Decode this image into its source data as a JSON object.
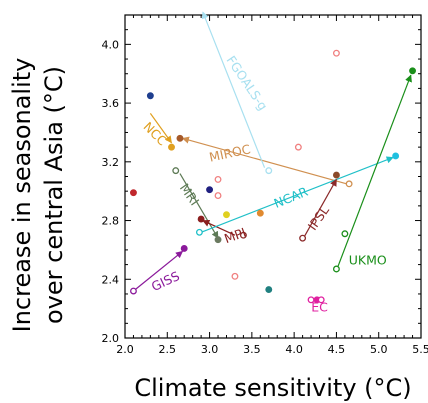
{
  "chart_data": {
    "type": "scatter",
    "xlabel": "Climate sensitivity (°C)",
    "ylabel_line1": "Increase in seasonality",
    "ylabel_line2": "over central Asia (°C)",
    "xlim": [
      2.0,
      5.5
    ],
    "ylim": [
      2.0,
      4.2
    ],
    "x_ticks": [
      "2.0",
      "2.5",
      "3.0",
      "3.5",
      "4.0",
      "4.5",
      "5.0",
      "5.5"
    ],
    "y_ticks": [
      "2.0",
      "2.4",
      "2.8",
      "3.2",
      "3.6",
      "4.0"
    ],
    "grid": false,
    "points": [
      {
        "x": 2.3,
        "y": 3.65,
        "color": "#1f3f8f",
        "filled": true
      },
      {
        "x": 2.1,
        "y": 2.99,
        "color": "#c0282d",
        "filled": true
      },
      {
        "x": 2.1,
        "y": 2.32,
        "color": "#8b1a9b",
        "filled": false
      },
      {
        "x": 2.7,
        "y": 2.61,
        "color": "#8b1a9b",
        "filled": true
      },
      {
        "x": 2.55,
        "y": 3.3,
        "color": "#e0a020",
        "filled": true
      },
      {
        "x": 2.65,
        "y": 3.36,
        "color": "#a65a2a",
        "filled": true
      },
      {
        "x": 2.6,
        "y": 3.14,
        "color": "#5d7a55",
        "filled": false
      },
      {
        "x": 3.0,
        "y": 3.01,
        "color": "#202080",
        "filled": true
      },
      {
        "x": 2.9,
        "y": 2.81,
        "color": "#8b1f1f",
        "filled": true
      },
      {
        "x": 2.88,
        "y": 2.72,
        "color": "#20c0c8",
        "filled": false
      },
      {
        "x": 3.1,
        "y": 2.67,
        "color": "#6b7a60",
        "filled": true
      },
      {
        "x": 3.2,
        "y": 2.84,
        "color": "#e0d020",
        "filled": true
      },
      {
        "x": 3.4,
        "y": 2.7,
        "color": "#8b2a2a",
        "filled": false
      },
      {
        "x": 3.6,
        "y": 2.85,
        "color": "#e08a30",
        "filled": true
      },
      {
        "x": 3.7,
        "y": 2.33,
        "color": "#208080",
        "filled": true
      },
      {
        "x": 3.7,
        "y": 3.14,
        "color": "#a8e0f0",
        "filled": false
      },
      {
        "x": 3.1,
        "y": 3.08,
        "color": "#f08080",
        "filled": false
      },
      {
        "x": 3.1,
        "y": 2.97,
        "color": "#f08080",
        "filled": false
      },
      {
        "x": 3.3,
        "y": 2.42,
        "color": "#f08080",
        "filled": false
      },
      {
        "x": 4.05,
        "y": 3.3,
        "color": "#f08080",
        "filled": false
      },
      {
        "x": 4.5,
        "y": 3.94,
        "color": "#f08080",
        "filled": false
      },
      {
        "x": 4.1,
        "y": 2.68,
        "color": "#8b2a2a",
        "filled": false
      },
      {
        "x": 4.5,
        "y": 3.11,
        "color": "#8b4a2a",
        "filled": true
      },
      {
        "x": 4.65,
        "y": 3.05,
        "color": "#d09050",
        "filled": false
      },
      {
        "x": 4.5,
        "y": 2.47,
        "color": "#1a8f1a",
        "filled": false
      },
      {
        "x": 4.6,
        "y": 2.71,
        "color": "#1a8f1a",
        "filled": false
      },
      {
        "x": 5.4,
        "y": 3.82,
        "color": "#1a8f1a",
        "filled": true
      },
      {
        "x": 5.2,
        "y": 3.24,
        "color": "#20c0e0",
        "filled": true
      },
      {
        "x": 4.2,
        "y": 2.26,
        "color": "#e020a0",
        "filled": false
      },
      {
        "x": 4.27,
        "y": 2.26,
        "color": "#e020a0",
        "filled": true
      },
      {
        "x": 4.32,
        "y": 2.26,
        "color": "#e020a0",
        "filled": false
      }
    ],
    "arrows": [
      {
        "name": "GISS",
        "color": "#8b1a9b",
        "from": [
          2.1,
          2.32
        ],
        "to": [
          2.68,
          2.59
        ],
        "label_pos": [
          2.5,
          2.36
        ],
        "label_rot": -25
      },
      {
        "name": "NCC",
        "color": "#e0a020",
        "from": [
          2.3,
          3.53
        ],
        "to": [
          2.55,
          3.33
        ],
        "label_pos": [
          2.32,
          3.37
        ],
        "label_rot": 45
      },
      {
        "name": "MIROC",
        "color": "#d09050",
        "from": [
          4.62,
          3.05
        ],
        "to": [
          2.68,
          3.36
        ],
        "label_pos": [
          3.25,
          3.23
        ],
        "label_rot": -12
      },
      {
        "name": "MRI",
        "color": "#5d7a55",
        "from": [
          2.65,
          3.12
        ],
        "to": [
          3.1,
          2.68
        ],
        "label_pos": [
          2.72,
          2.96
        ],
        "label_rot": 55
      },
      {
        "name": "MPI",
        "color": "#8b1f1f",
        "from": [
          3.3,
          2.7
        ],
        "to": [
          2.92,
          2.8
        ],
        "label_pos": [
          3.32,
          2.67
        ],
        "label_rot": -20
      },
      {
        "name": "NCAR",
        "color": "#20c0c8",
        "from": [
          2.9,
          2.72
        ],
        "to": [
          5.17,
          3.23
        ],
        "label_pos": [
          3.98,
          2.93
        ],
        "label_rot": -22
      },
      {
        "name": "IPSL",
        "color": "#8b2a2a",
        "from": [
          4.12,
          2.69
        ],
        "to": [
          4.5,
          3.08
        ],
        "label_pos": [
          4.33,
          2.8
        ],
        "label_rot": -55
      },
      {
        "name": "UKMO",
        "color": "#1a8f1a",
        "from": [
          4.52,
          2.49
        ],
        "to": [
          5.38,
          3.79
        ],
        "label_pos": [
          4.87,
          2.5
        ],
        "label_rot": 0
      },
      {
        "name": "FGOALS-g",
        "color": "#a8e0f0",
        "from": [
          3.65,
          3.16
        ],
        "to": [
          2.92,
          4.22
        ],
        "label_pos": [
          3.4,
          3.72
        ],
        "label_rot": 56
      }
    ],
    "text_labels": [
      {
        "name": "EC",
        "color": "#e020a0",
        "pos": [
          4.3,
          2.18
        ]
      }
    ]
  }
}
